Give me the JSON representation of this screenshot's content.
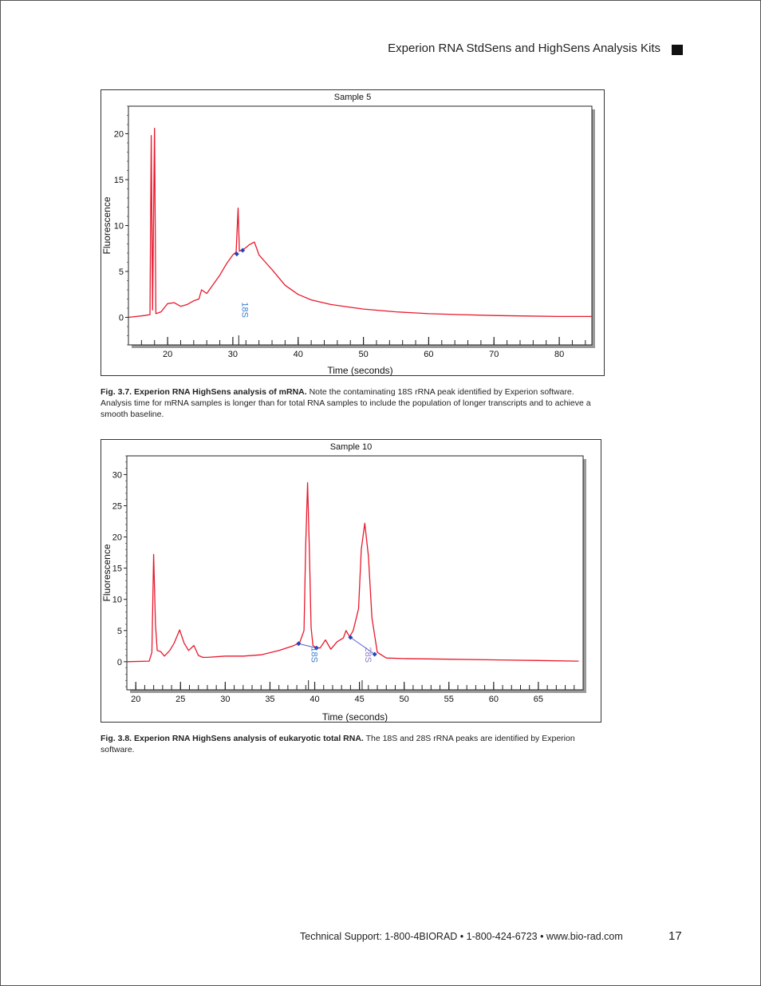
{
  "header": {
    "title": "Experion RNA StdSens and HighSens Analysis Kits"
  },
  "figures": [
    {
      "caption_label": "Fig. 3.7. Experion RNA HighSens analysis of mRNA.",
      "caption_text": " Note the contaminating 18S rRNA peak identified by Experion software. Analysis time for mRNA samples is longer than for total RNA samples to include the population of longer transcripts and to achieve a smooth baseline."
    },
    {
      "caption_label": "Fig. 3.8. Experion RNA HighSens analysis of eukaryotic total RNA.",
      "caption_text": " The 18S and 28S rRNA peaks are identified by Experion software."
    }
  ],
  "chart_data": [
    {
      "type": "line",
      "title": "Sample 5",
      "xlabel": "Time (seconds)",
      "ylabel": "Fluorescence",
      "xlim": [
        14,
        85
      ],
      "ylim": [
        -3,
        23
      ],
      "xticks": [
        20,
        30,
        40,
        50,
        60,
        70,
        80
      ],
      "yticks": [
        0,
        5,
        10,
        15,
        20
      ],
      "line_color": "#e8192c",
      "series": [
        {
          "x": [
            14.0,
            16.5,
            17.3,
            17.5,
            17.7,
            18.0,
            18.2,
            19.0,
            20.0,
            21.0,
            22.0,
            23.0,
            24.0,
            24.8,
            25.2,
            26.0,
            27.0,
            28.0,
            29.0,
            30.0,
            30.5,
            30.8,
            31.0,
            31.3,
            31.6,
            32.0,
            32.5,
            33.0,
            33.3,
            33.6,
            34.0,
            35.0,
            36.0,
            38.0,
            40.0,
            42.0,
            45.0,
            48.0,
            50.0,
            55.0,
            60.0,
            65.0,
            70.0,
            75.0,
            80.0,
            85.0
          ],
          "y": [
            0.0,
            0.2,
            0.3,
            19.8,
            0.8,
            20.6,
            0.4,
            0.6,
            1.5,
            1.6,
            1.2,
            1.4,
            1.8,
            2.0,
            3.0,
            2.6,
            3.6,
            4.6,
            5.8,
            6.8,
            7.1,
            11.9,
            7.2,
            7.3,
            7.4,
            7.6,
            7.9,
            8.1,
            8.2,
            7.6,
            6.8,
            6.0,
            5.2,
            3.5,
            2.5,
            1.9,
            1.4,
            1.1,
            0.9,
            0.6,
            0.4,
            0.3,
            0.2,
            0.15,
            0.1,
            0.1
          ]
        }
      ],
      "markers": [
        {
          "x": 30.6,
          "y": 6.9
        },
        {
          "x": 31.5,
          "y": 7.3
        }
      ],
      "peak_labels": [
        {
          "label": "18S",
          "x": 30.9
        }
      ]
    },
    {
      "type": "line",
      "title": "Sample 10",
      "xlabel": "Time (seconds)",
      "ylabel": "Fluorescence",
      "xlim": [
        19,
        70
      ],
      "ylim": [
        -4.5,
        33
      ],
      "xticks": [
        20,
        25,
        30,
        35,
        40,
        45,
        50,
        55,
        60,
        65
      ],
      "yticks": [
        0,
        5,
        10,
        15,
        20,
        25,
        30
      ],
      "line_color": "#e8192c",
      "series": [
        {
          "x": [
            19.0,
            21.5,
            21.8,
            22.0,
            22.2,
            22.4,
            22.8,
            23.2,
            23.8,
            24.3,
            24.9,
            25.4,
            25.9,
            26.5,
            27.0,
            27.5,
            28.0,
            30.0,
            32.0,
            34.0,
            36.0,
            37.5,
            38.3,
            38.8,
            39.0,
            39.2,
            39.4,
            39.6,
            39.8,
            40.1,
            40.6,
            41.2,
            41.8,
            42.5,
            43.2,
            43.5,
            43.9,
            44.3,
            44.9,
            45.2,
            45.6,
            46.0,
            46.4,
            47.0,
            48.0,
            50.0,
            55.0,
            60.0,
            65.0,
            69.5
          ],
          "y": [
            0.0,
            0.1,
            1.5,
            17.2,
            6.0,
            1.8,
            1.6,
            0.9,
            1.8,
            3.0,
            5.1,
            3.0,
            1.8,
            2.6,
            1.0,
            0.7,
            0.7,
            0.9,
            0.9,
            1.1,
            1.8,
            2.5,
            3.0,
            5.0,
            19.0,
            28.7,
            18.0,
            5.5,
            2.6,
            2.3,
            2.2,
            3.5,
            2.0,
            3.2,
            3.8,
            5.0,
            4.0,
            5.0,
            8.5,
            18.0,
            22.2,
            17.0,
            7.0,
            1.5,
            0.6,
            0.5,
            0.4,
            0.3,
            0.2,
            0.1
          ]
        }
      ],
      "markers": [
        {
          "x": 38.2,
          "y": 2.9
        },
        {
          "x": 40.2,
          "y": 2.2
        },
        {
          "x": 44.0,
          "y": 3.9
        },
        {
          "x": 46.7,
          "y": 1.2
        }
      ],
      "baselines": [
        {
          "from": [
            38.2,
            2.9
          ],
          "to": [
            40.2,
            2.2
          ]
        },
        {
          "from": [
            44.0,
            3.9
          ],
          "to": [
            46.7,
            1.2
          ]
        }
      ],
      "peak_labels": [
        {
          "label": "18S",
          "x": 39.3,
          "color": "#3a7fd0"
        },
        {
          "label": "28S",
          "x": 45.3,
          "color": "#8a78c8"
        }
      ]
    }
  ],
  "footer": {
    "support": "Technical Support: 1-800-4BIORAD • 1-800-424-6723 • www.bio-rad.com",
    "page_number": "17"
  }
}
